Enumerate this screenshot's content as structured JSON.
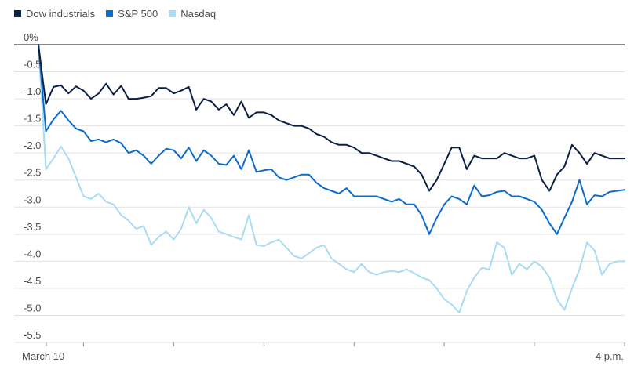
{
  "chart_data": {
    "type": "line",
    "title": "",
    "xlabel": "",
    "ylabel": "",
    "ylim": [
      -5.5,
      0
    ],
    "y_ticks": [
      0,
      -0.5,
      -1.0,
      -1.5,
      -2.0,
      -2.5,
      -3.0,
      -3.5,
      -4.0,
      -4.5,
      -5.0,
      -5.5
    ],
    "y_tick_labels": [
      "0%",
      "-0.5",
      "-1.0",
      "-1.5",
      "-2.0",
      "-2.5",
      "-3.0",
      "-3.5",
      "-4.0",
      "-4.5",
      "-5.0",
      "-5.5"
    ],
    "x_range": [
      9.5,
      16.0
    ],
    "x_tick_hours": [
      9.5,
      10,
      11,
      12,
      13,
      14,
      15,
      16
    ],
    "x_tick_labels": [
      {
        "hour": 9.5,
        "label": "March 10"
      },
      {
        "hour": 16.0,
        "label": "4 p.m."
      }
    ],
    "grid": true,
    "legend_position": "top-left",
    "x": [
      9.5,
      9.583,
      9.667,
      9.75,
      9.833,
      9.917,
      10.0,
      10.083,
      10.167,
      10.25,
      10.333,
      10.417,
      10.5,
      10.583,
      10.667,
      10.75,
      10.833,
      10.917,
      11.0,
      11.083,
      11.167,
      11.25,
      11.333,
      11.417,
      11.5,
      11.583,
      11.667,
      11.75,
      11.833,
      11.917,
      12.0,
      12.083,
      12.167,
      12.25,
      12.333,
      12.417,
      12.5,
      12.583,
      12.667,
      12.75,
      12.833,
      12.917,
      13.0,
      13.083,
      13.167,
      13.25,
      13.333,
      13.417,
      13.5,
      13.583,
      13.667,
      13.75,
      13.833,
      13.917,
      14.0,
      14.083,
      14.167,
      14.25,
      14.333,
      14.417,
      14.5,
      14.583,
      14.667,
      14.75,
      14.833,
      14.917,
      15.0,
      15.083,
      15.167,
      15.25,
      15.333,
      15.417,
      15.5,
      15.583,
      15.667,
      15.75,
      15.833,
      15.917,
      16.0
    ],
    "series": [
      {
        "name": "Dow industrials",
        "color": "#0b1f44",
        "values": [
          0,
          -1.1,
          -0.78,
          -0.75,
          -0.9,
          -0.77,
          -0.85,
          -1.0,
          -0.9,
          -0.72,
          -0.92,
          -0.76,
          -1.0,
          -1.0,
          -0.98,
          -0.95,
          -0.8,
          -0.8,
          -0.9,
          -0.85,
          -0.78,
          -1.2,
          -1.0,
          -1.05,
          -1.2,
          -1.1,
          -1.3,
          -1.05,
          -1.35,
          -1.25,
          -1.25,
          -1.3,
          -1.4,
          -1.45,
          -1.5,
          -1.5,
          -1.55,
          -1.65,
          -1.7,
          -1.8,
          -1.85,
          -1.85,
          -1.9,
          -2.0,
          -2.0,
          -2.05,
          -2.1,
          -2.15,
          -2.15,
          -2.2,
          -2.25,
          -2.4,
          -2.7,
          -2.5,
          -2.2,
          -1.9,
          -1.9,
          -2.3,
          -2.05,
          -2.1,
          -2.1,
          -2.1,
          -2.0,
          -2.05,
          -2.1,
          -2.1,
          -2.05,
          -2.5,
          -2.7,
          -2.4,
          -2.25,
          -1.85,
          -2.0,
          -2.2,
          -2.0,
          -2.05,
          -2.1,
          -2.1,
          -2.1
        ]
      },
      {
        "name": "S&P 500",
        "color": "#0d6bc9",
        "values": [
          0,
          -1.6,
          -1.38,
          -1.22,
          -1.4,
          -1.55,
          -1.6,
          -1.78,
          -1.75,
          -1.8,
          -1.75,
          -1.82,
          -2.0,
          -1.95,
          -2.05,
          -2.2,
          -2.05,
          -1.92,
          -1.95,
          -2.1,
          -1.9,
          -2.15,
          -1.95,
          -2.05,
          -2.2,
          -2.22,
          -2.05,
          -2.3,
          -1.95,
          -2.35,
          -2.32,
          -2.3,
          -2.45,
          -2.5,
          -2.45,
          -2.4,
          -2.4,
          -2.55,
          -2.65,
          -2.7,
          -2.75,
          -2.65,
          -2.8,
          -2.8,
          -2.8,
          -2.8,
          -2.85,
          -2.9,
          -2.85,
          -2.95,
          -2.95,
          -3.15,
          -3.5,
          -3.2,
          -2.95,
          -2.8,
          -2.85,
          -2.95,
          -2.6,
          -2.8,
          -2.78,
          -2.72,
          -2.7,
          -2.8,
          -2.8,
          -2.85,
          -2.9,
          -3.05,
          -3.3,
          -3.5,
          -3.2,
          -2.9,
          -2.5,
          -2.95,
          -2.78,
          -2.8,
          -2.72,
          -2.7,
          -2.68
        ]
      },
      {
        "name": "Nasdaq",
        "color": "#a8dcf2",
        "values": [
          0,
          -2.3,
          -2.1,
          -1.88,
          -2.1,
          -2.45,
          -2.8,
          -2.85,
          -2.75,
          -2.9,
          -2.95,
          -3.15,
          -3.25,
          -3.4,
          -3.35,
          -3.7,
          -3.55,
          -3.45,
          -3.6,
          -3.4,
          -3.0,
          -3.3,
          -3.05,
          -3.2,
          -3.45,
          -3.5,
          -3.55,
          -3.6,
          -3.15,
          -3.7,
          -3.72,
          -3.65,
          -3.6,
          -3.75,
          -3.9,
          -3.95,
          -3.85,
          -3.75,
          -3.7,
          -3.95,
          -4.05,
          -4.15,
          -4.2,
          -4.05,
          -4.2,
          -4.25,
          -4.2,
          -4.18,
          -4.2,
          -4.15,
          -4.22,
          -4.3,
          -4.35,
          -4.5,
          -4.7,
          -4.8,
          -4.95,
          -4.55,
          -4.3,
          -4.12,
          -4.15,
          -3.65,
          -3.75,
          -4.25,
          -4.05,
          -4.15,
          -4.0,
          -4.1,
          -4.3,
          -4.7,
          -4.9,
          -4.5,
          -4.15,
          -3.65,
          -3.8,
          -4.25,
          -4.05,
          -4.0,
          -4.0
        ]
      }
    ]
  }
}
